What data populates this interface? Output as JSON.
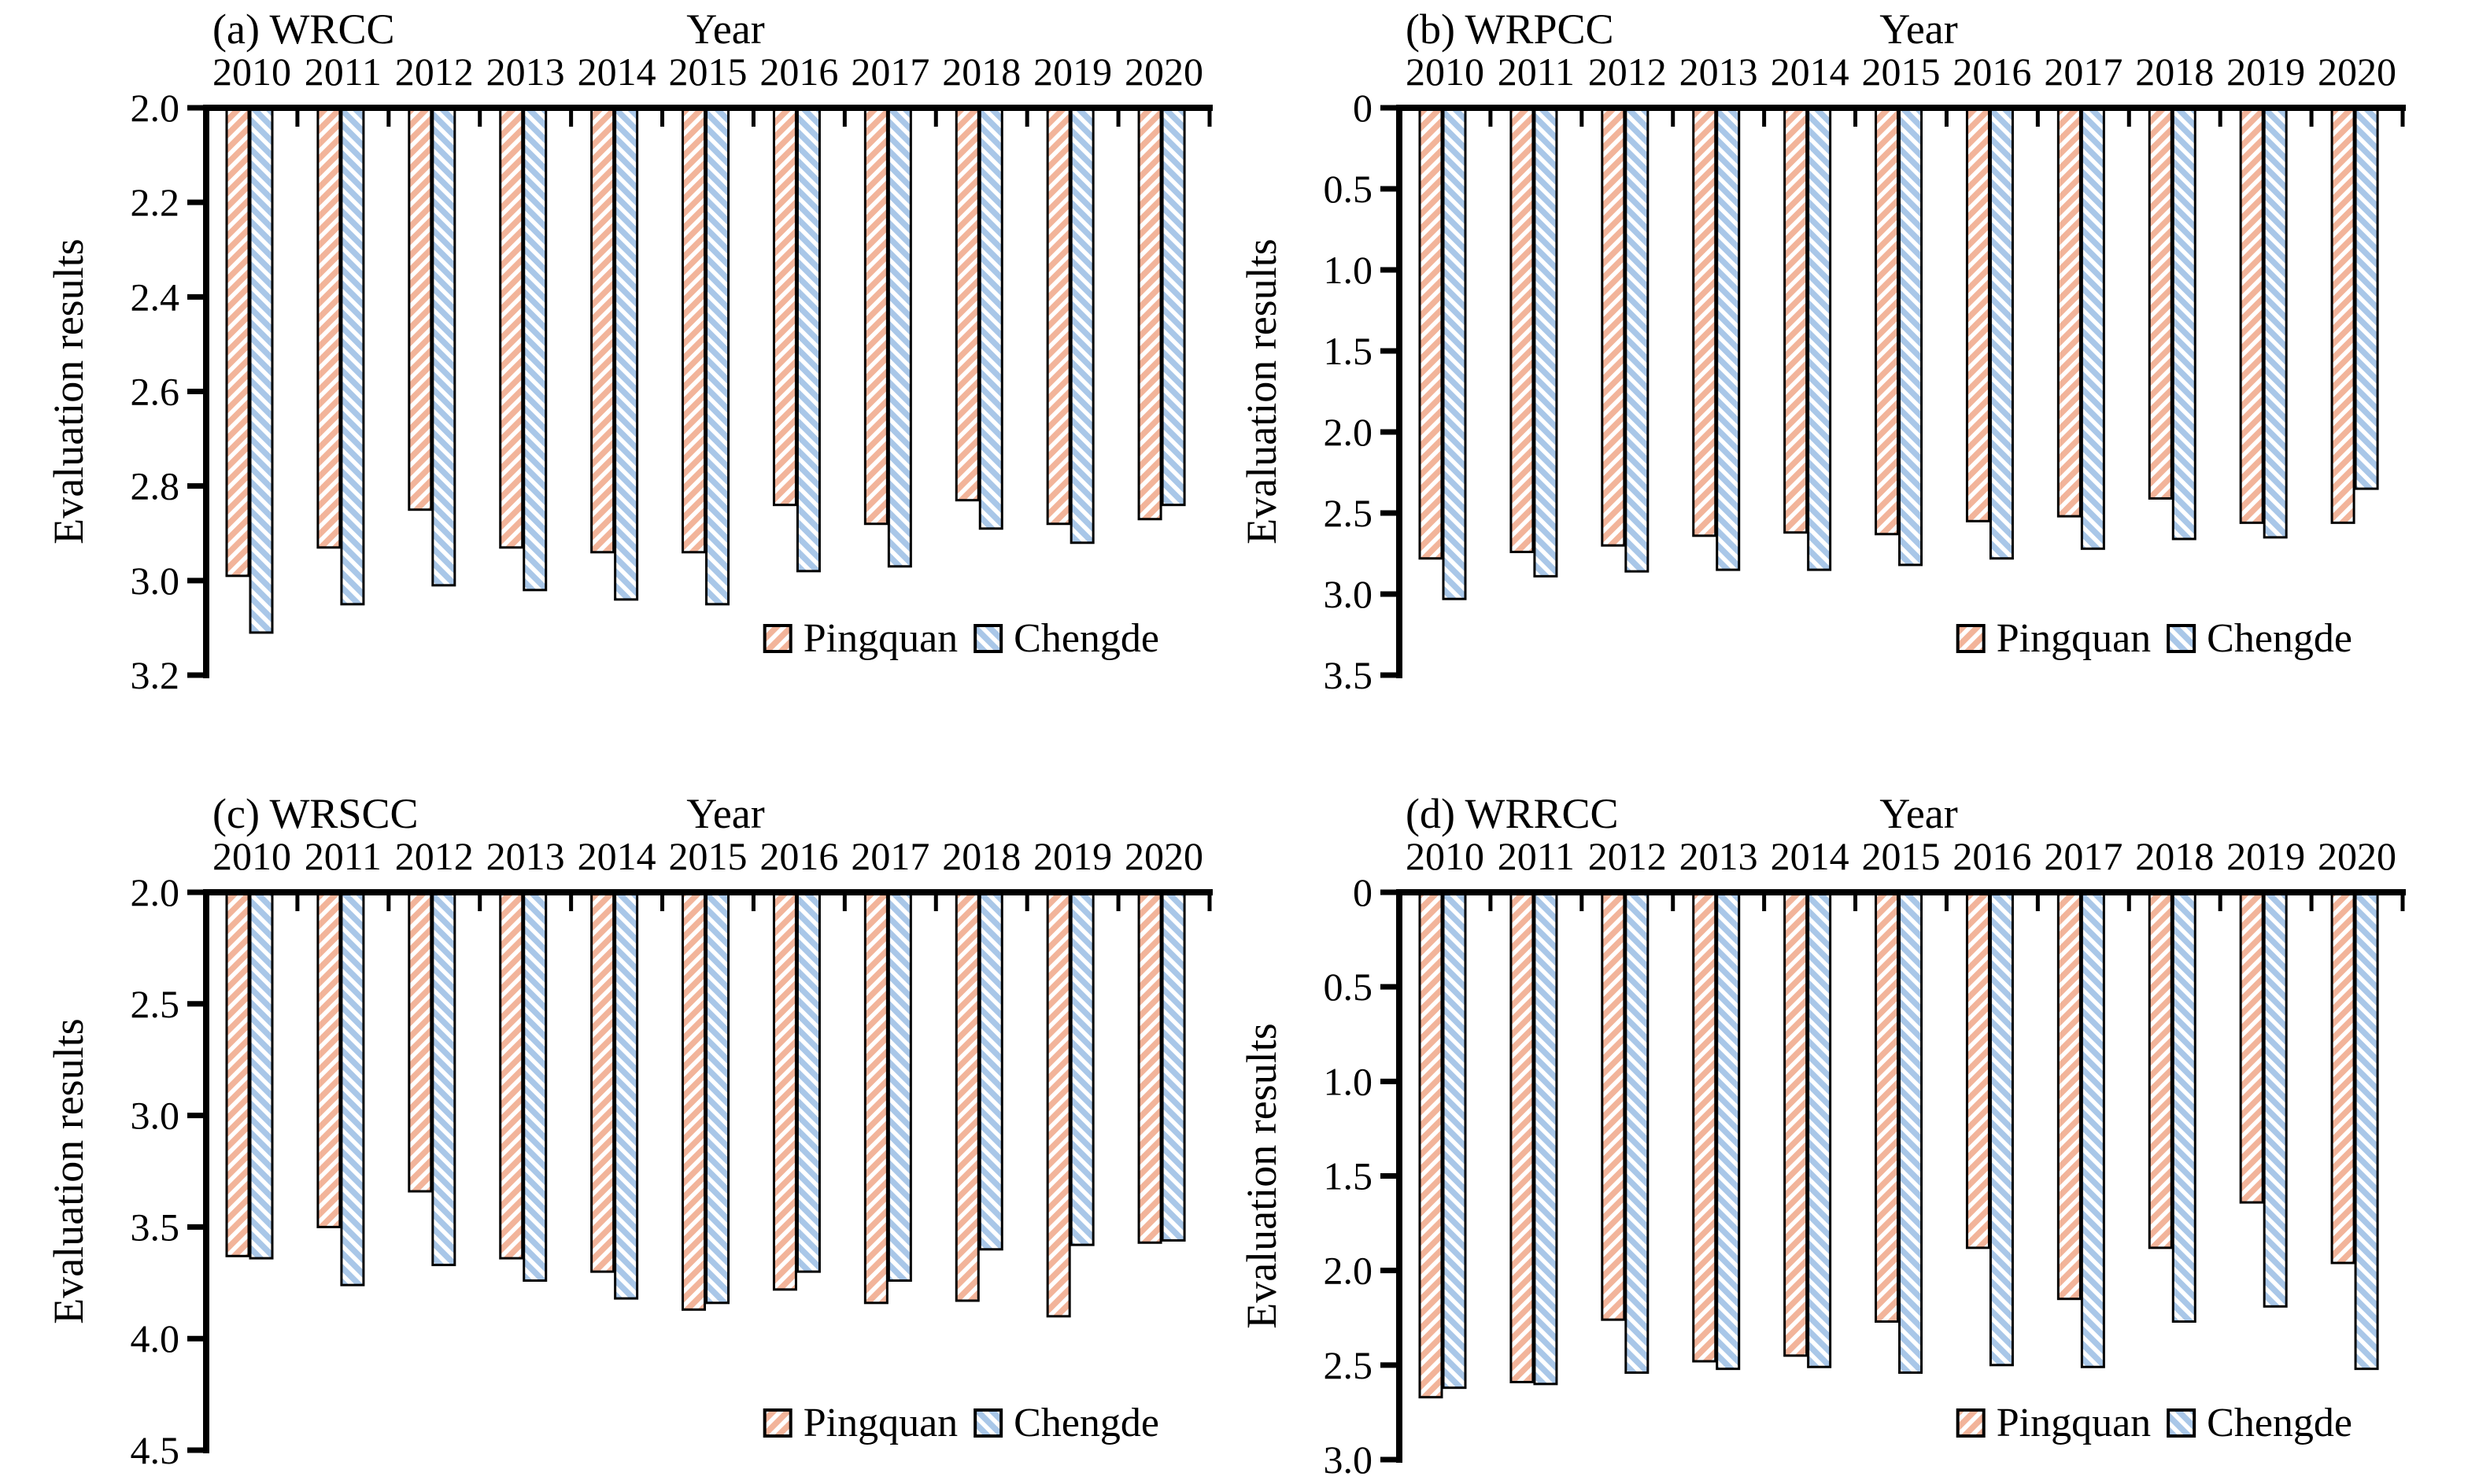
{
  "figure": {
    "series_labels": [
      "Pingquan",
      "Chengde"
    ],
    "colors": {
      "pingquan_fill": "#F2B49A",
      "chengde_fill": "#A9C7E8",
      "hatch_stripe": "#FFFFFF",
      "bar_outline": "#000000",
      "axis": "#000000",
      "text": "#000000",
      "background": "#FFFFFF"
    }
  },
  "chart_data": [
    {
      "type": "bar",
      "panel_label": "(a) WRCC",
      "xlabel": "Year",
      "ylabel": "Evaluation results",
      "categories": [
        "2010",
        "2011",
        "2012",
        "2013",
        "2014",
        "2015",
        "2016",
        "2017",
        "2018",
        "2019",
        "2020"
      ],
      "series": [
        {
          "name": "Pingquan",
          "values": [
            2.99,
            2.93,
            2.85,
            2.93,
            2.94,
            2.94,
            2.84,
            2.88,
            2.83,
            2.88,
            2.87
          ]
        },
        {
          "name": "Chengde",
          "values": [
            3.11,
            3.05,
            3.01,
            3.02,
            3.04,
            3.05,
            2.98,
            2.97,
            2.89,
            2.92,
            2.84
          ]
        }
      ],
      "ylim": [
        2.0,
        3.2
      ],
      "yticks": [
        "2.0",
        "2.2",
        "2.4",
        "2.6",
        "2.8",
        "3.0",
        "3.2"
      ],
      "axis_inverted": true,
      "grid": false,
      "legend_position": "bottom-right"
    },
    {
      "type": "bar",
      "panel_label": "(b) WRPCC",
      "xlabel": "Year",
      "ylabel": "Evaluation results",
      "categories": [
        "2010",
        "2011",
        "2012",
        "2013",
        "2014",
        "2015",
        "2016",
        "2017",
        "2018",
        "2019",
        "2020"
      ],
      "series": [
        {
          "name": "Pingquan",
          "values": [
            2.78,
            2.74,
            2.7,
            2.64,
            2.62,
            2.63,
            2.55,
            2.52,
            2.41,
            2.56,
            2.56
          ]
        },
        {
          "name": "Chengde",
          "values": [
            3.03,
            2.89,
            2.86,
            2.85,
            2.85,
            2.82,
            2.78,
            2.72,
            2.66,
            2.65,
            2.35
          ]
        }
      ],
      "ylim": [
        0,
        3.5
      ],
      "yticks": [
        "0",
        "0.5",
        "1.0",
        "1.5",
        "2.0",
        "2.5",
        "3.0",
        "3.5"
      ],
      "axis_inverted": true,
      "grid": false,
      "legend_position": "bottom-right"
    },
    {
      "type": "bar",
      "panel_label": "(c) WRSCC",
      "xlabel": "Year",
      "ylabel": "Evaluation results",
      "categories": [
        "2010",
        "2011",
        "2012",
        "2013",
        "2014",
        "2015",
        "2016",
        "2017",
        "2018",
        "2019",
        "2020"
      ],
      "series": [
        {
          "name": "Pingquan",
          "values": [
            3.63,
            3.5,
            3.34,
            3.64,
            3.7,
            3.87,
            3.78,
            3.84,
            3.83,
            3.9,
            3.57
          ]
        },
        {
          "name": "Chengde",
          "values": [
            3.64,
            3.76,
            3.67,
            3.74,
            3.82,
            3.84,
            3.7,
            3.74,
            3.6,
            3.58,
            3.56
          ]
        }
      ],
      "ylim": [
        2.0,
        4.5
      ],
      "yticks": [
        "2.0",
        "2.5",
        "3.0",
        "3.5",
        "4.0",
        "4.5"
      ],
      "axis_inverted": true,
      "grid": false,
      "legend_position": "bottom-right"
    },
    {
      "type": "bar",
      "panel_label": "(d) WRRCC",
      "xlabel": "Year",
      "ylabel": "Evaluation results",
      "categories": [
        "2010",
        "2011",
        "2012",
        "2013",
        "2014",
        "2015",
        "2016",
        "2017",
        "2018",
        "2019",
        "2020"
      ],
      "series": [
        {
          "name": "Pingquan",
          "values": [
            2.67,
            2.59,
            2.26,
            2.48,
            2.45,
            2.27,
            1.88,
            2.15,
            1.88,
            1.64,
            1.96
          ]
        },
        {
          "name": "Chengde",
          "values": [
            2.62,
            2.6,
            2.54,
            2.52,
            2.51,
            2.54,
            2.5,
            2.51,
            2.27,
            2.19,
            2.52
          ]
        }
      ],
      "ylim": [
        0,
        3.0
      ],
      "yticks": [
        "0",
        "0.5",
        "1.0",
        "1.5",
        "2.0",
        "2.5",
        "3.0"
      ],
      "axis_inverted": true,
      "grid": false,
      "legend_position": "bottom-right"
    }
  ]
}
